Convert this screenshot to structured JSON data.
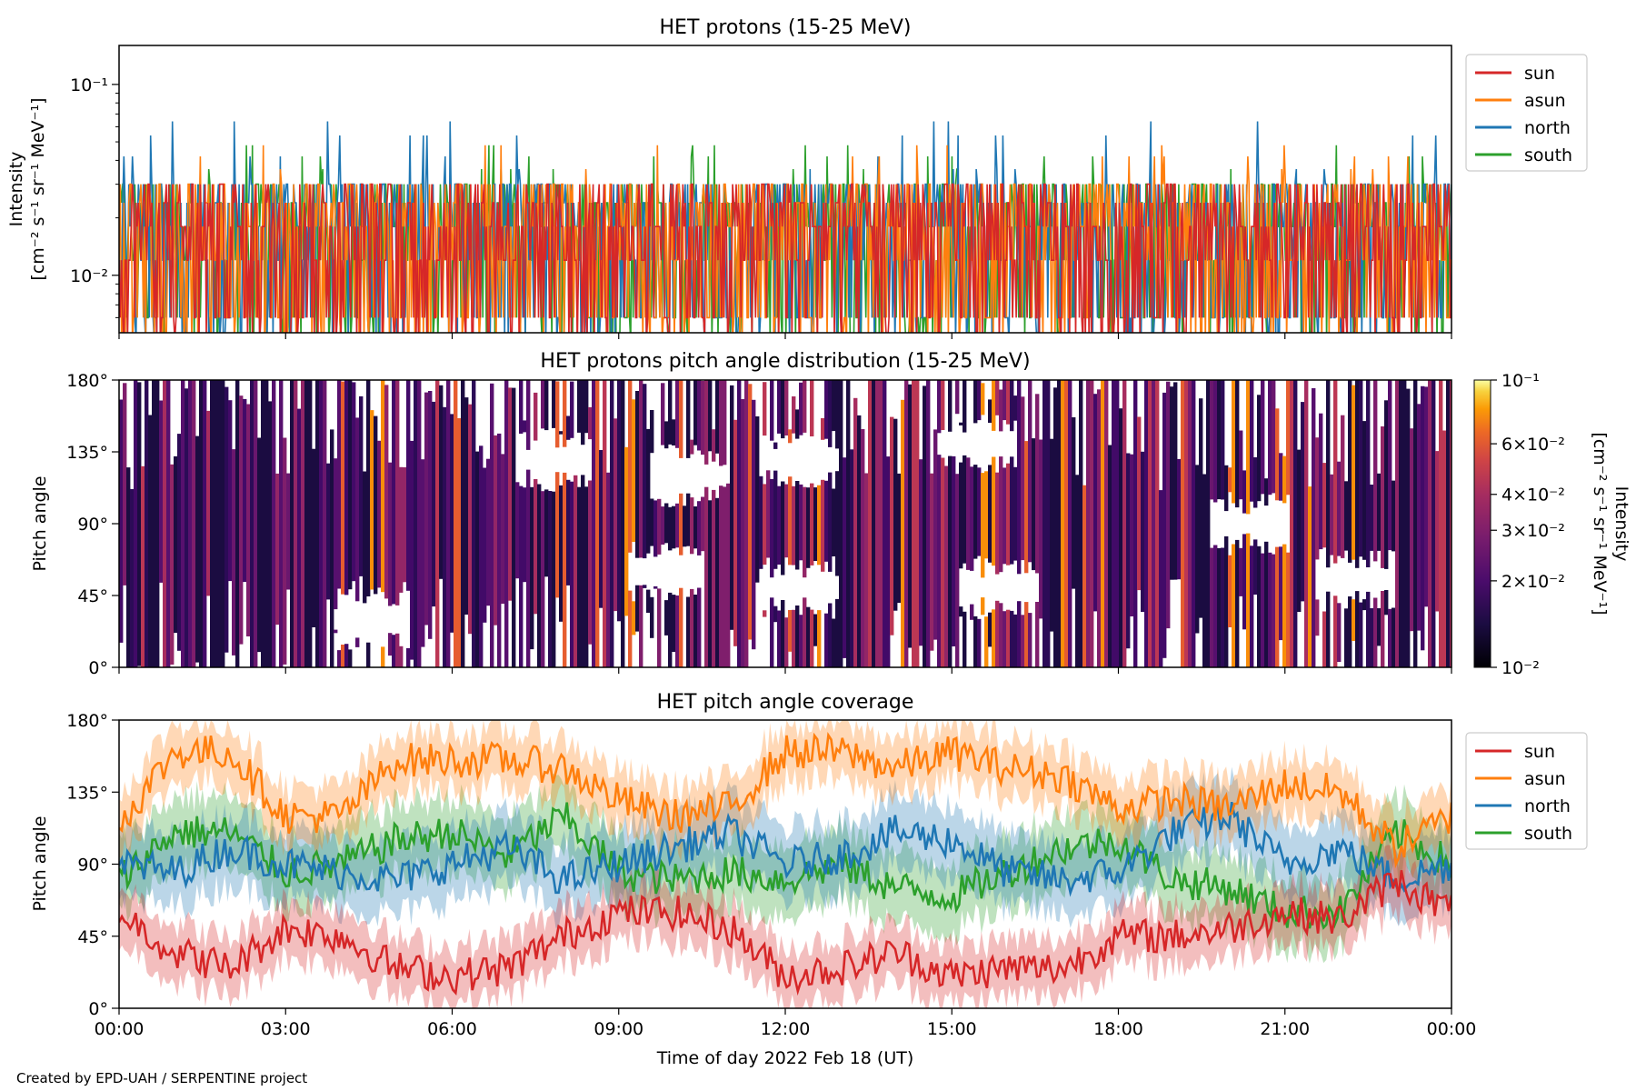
{
  "colors": {
    "sun": "#d62728",
    "asun": "#ff7f0e",
    "north": "#1f77b4",
    "south": "#2ca02c"
  },
  "footer": "Created by EPD-UAH / SERPENTINE project",
  "xlabel": "Time of day 2022 Feb 18 (UT)",
  "xticks": [
    "00:00",
    "03:00",
    "06:00",
    "09:00",
    "12:00",
    "15:00",
    "18:00",
    "21:00",
    "00:00"
  ],
  "chart_data": [
    {
      "type": "line",
      "title": "HET protons (15-25 MeV)",
      "ylabel_line1": "Intensity",
      "ylabel_line2": "[cm⁻² s⁻¹ sr⁻¹ MeV⁻¹]",
      "yscale": "log",
      "ylim": [
        0.005,
        0.16
      ],
      "yticks": [
        "10⁻¹",
        "10⁻²"
      ],
      "ytick_values": [
        0.1,
        0.01
      ],
      "x_range_hours": [
        0,
        24
      ],
      "legend": [
        "sun",
        "asun",
        "north",
        "south"
      ],
      "legend_position": "right",
      "series": [
        {
          "name": "sun",
          "levels": [
            0.006,
            0.012,
            0.018,
            0.024,
            0.03
          ],
          "typical": 0.018
        },
        {
          "name": "asun",
          "levels": [
            0.006,
            0.012,
            0.018,
            0.024,
            0.03,
            0.036,
            0.042,
            0.048
          ],
          "typical": 0.018
        },
        {
          "name": "north",
          "levels": [
            0.006,
            0.012,
            0.018,
            0.024,
            0.03,
            0.036,
            0.042,
            0.054,
            0.064
          ],
          "typical": 0.018
        },
        {
          "name": "south",
          "levels": [
            0.006,
            0.012,
            0.018,
            0.024,
            0.03,
            0.036,
            0.042,
            0.048
          ],
          "typical": 0.018
        }
      ]
    },
    {
      "type": "heatmap",
      "title": "HET protons pitch angle distribution (15-25 MeV)",
      "ylabel": "Pitch angle",
      "ylim": [
        0,
        180
      ],
      "yticks": [
        "180°",
        "135°",
        "90°",
        "45°",
        "0°"
      ],
      "ytick_values": [
        180,
        135,
        90,
        45,
        0
      ],
      "colormap": "inferno",
      "colorbar": {
        "scale": "log",
        "range": [
          0.01,
          0.1
        ],
        "ticks": [
          "10⁻¹",
          "6×10⁻²",
          "4×10⁻²",
          "3×10⁻²",
          "2×10⁻²",
          "10⁻²"
        ],
        "tick_values": [
          0.1,
          0.06,
          0.04,
          0.03,
          0.02,
          0.01
        ],
        "label_line1": "Intensity",
        "label_line2": "[cm⁻² s⁻¹ sr⁻¹ MeV⁻¹]"
      }
    },
    {
      "type": "line",
      "title": "HET pitch angle coverage",
      "ylabel": "Pitch angle",
      "ylim": [
        0,
        180
      ],
      "yticks": [
        "180°",
        "135°",
        "90°",
        "45°",
        "0°"
      ],
      "ytick_values": [
        180,
        135,
        90,
        45,
        0
      ],
      "legend": [
        "sun",
        "asun",
        "north",
        "south"
      ],
      "legend_position": "right",
      "x_hours": [
        0,
        1,
        2,
        3,
        4,
        5,
        6,
        7,
        8,
        9,
        10,
        11,
        12,
        13,
        14,
        15,
        16,
        17,
        18,
        19,
        20,
        21,
        22,
        23,
        24
      ],
      "series": [
        {
          "name": "sun",
          "values": [
            60,
            35,
            25,
            50,
            45,
            25,
            20,
            25,
            45,
            60,
            60,
            50,
            20,
            25,
            35,
            20,
            25,
            25,
            45,
            45,
            50,
            60,
            55,
            80,
            60
          ],
          "band": 18
        },
        {
          "name": "asun",
          "values": [
            115,
            160,
            160,
            120,
            120,
            155,
            155,
            155,
            150,
            130,
            120,
            125,
            160,
            160,
            150,
            160,
            150,
            145,
            125,
            130,
            125,
            140,
            135,
            100,
            120
          ],
          "band": 18
        },
        {
          "name": "north",
          "values": [
            90,
            85,
            100,
            90,
            85,
            80,
            90,
            100,
            80,
            90,
            100,
            110,
            90,
            95,
            110,
            105,
            85,
            80,
            85,
            110,
            120,
            90,
            100,
            80,
            90
          ],
          "band": 22
        },
        {
          "name": "south",
          "values": [
            80,
            110,
            110,
            85,
            90,
            105,
            110,
            95,
            120,
            85,
            80,
            85,
            80,
            90,
            75,
            70,
            85,
            100,
            105,
            80,
            75,
            60,
            60,
            110,
            90
          ],
          "band": 22
        }
      ]
    }
  ]
}
